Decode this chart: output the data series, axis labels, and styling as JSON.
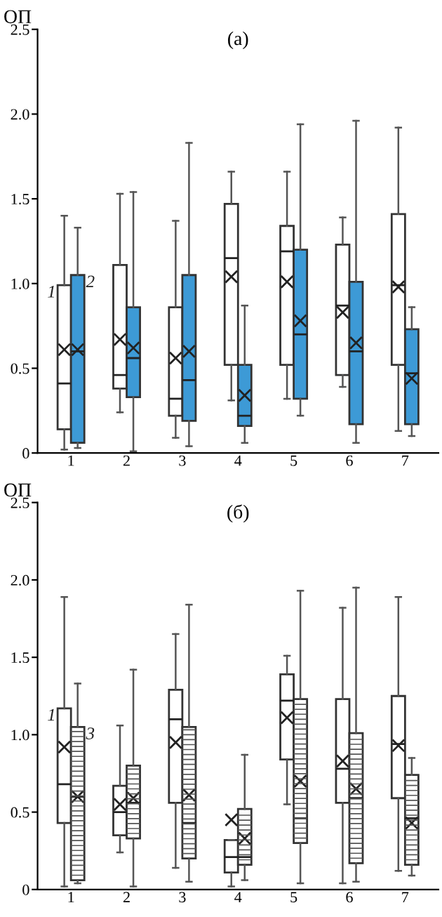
{
  "chart_data": [
    {
      "type": "box",
      "title": "(а)",
      "ylabel": "ОП",
      "categories": [
        "1",
        "2",
        "3",
        "4",
        "5",
        "6",
        "7"
      ],
      "ylim": [
        0,
        2.5
      ],
      "yticks": [
        0,
        {
          "value": 0.5,
          "label": "0.5"
        },
        {
          "value": 1,
          "label": "1.0"
        },
        {
          "value": 1.5,
          "label": "1.5"
        },
        {
          "value": 2,
          "label": "2.0"
        },
        {
          "value": 2.5,
          "label": "2.5"
        }
      ],
      "grid": false,
      "legend": false,
      "marker": "cross",
      "series": [
        {
          "name": "1",
          "color": "#ffffff",
          "boxes": [
            {
              "low": 0.02,
              "q1": 0.14,
              "median": 0.41,
              "q3": 0.99,
              "high": 1.4,
              "mean": 0.61
            },
            {
              "low": 0.24,
              "q1": 0.38,
              "median": 0.46,
              "q3": 1.11,
              "high": 1.53,
              "mean": 0.67
            },
            {
              "low": 0.09,
              "q1": 0.22,
              "median": 0.32,
              "q3": 0.86,
              "high": 1.37,
              "mean": 0.56
            },
            {
              "low": 0.31,
              "q1": 0.52,
              "median": 1.15,
              "q3": 1.47,
              "high": 1.66,
              "mean": 1.04
            },
            {
              "low": 0.32,
              "q1": 0.52,
              "median": 1.19,
              "q3": 1.34,
              "high": 1.66,
              "mean": 1.01
            },
            {
              "low": 0.39,
              "q1": 0.46,
              "median": 0.87,
              "q3": 1.23,
              "high": 1.39,
              "mean": 0.83
            },
            {
              "low": 0.13,
              "q1": 0.52,
              "median": 0.99,
              "q3": 1.41,
              "high": 1.92,
              "mean": 0.98
            }
          ]
        },
        {
          "name": "2",
          "color": "#3d9ad6",
          "boxes": [
            {
              "low": 0.03,
              "q1": 0.06,
              "median": 0.6,
              "q3": 1.05,
              "high": 1.33,
              "mean": 0.61
            },
            {
              "low": 0.01,
              "q1": 0.33,
              "median": 0.56,
              "q3": 0.86,
              "high": 1.54,
              "mean": 0.62
            },
            {
              "low": 0.04,
              "q1": 0.19,
              "median": 0.43,
              "q3": 1.05,
              "high": 1.83,
              "mean": 0.6
            },
            {
              "low": 0.06,
              "q1": 0.16,
              "median": 0.22,
              "q3": 0.52,
              "high": 0.87,
              "mean": 0.34
            },
            {
              "low": 0.22,
              "q1": 0.32,
              "median": 0.7,
              "q3": 1.2,
              "high": 1.94,
              "mean": 0.78
            },
            {
              "low": 0.06,
              "q1": 0.17,
              "median": 0.6,
              "q3": 1.01,
              "high": 1.96,
              "mean": 0.65
            },
            {
              "low": 0.1,
              "q1": 0.17,
              "median": 0.47,
              "q3": 0.73,
              "high": 0.86,
              "mean": 0.44
            }
          ]
        }
      ]
    },
    {
      "type": "box",
      "title": "(б)",
      "ylabel": "ОП",
      "categories": [
        "1",
        "2",
        "3",
        "4",
        "5",
        "6",
        "7"
      ],
      "ylim": [
        0,
        2.5
      ],
      "yticks": [
        0,
        {
          "value": 0.5,
          "label": "0.5"
        },
        {
          "value": 1,
          "label": "1.0"
        },
        {
          "value": 1.5,
          "label": "1.5"
        },
        {
          "value": 2,
          "label": "2.0"
        },
        {
          "value": 2.5,
          "label": "2.5"
        }
      ],
      "grid": false,
      "legend": false,
      "marker": "cross",
      "series": [
        {
          "name": "1",
          "color": "#ffffff",
          "boxes": [
            {
              "low": 0.02,
              "q1": 0.43,
              "median": 0.68,
              "q3": 1.17,
              "high": 1.89,
              "mean": 0.92
            },
            {
              "low": 0.24,
              "q1": 0.35,
              "median": 0.5,
              "q3": 0.67,
              "high": 1.06,
              "mean": 0.55
            },
            {
              "low": 0.14,
              "q1": 0.56,
              "median": 1.1,
              "q3": 1.29,
              "high": 1.65,
              "mean": 0.95
            },
            {
              "low": 0.02,
              "q1": 0.11,
              "median": 0.21,
              "q3": 0.32,
              "high": 0.32,
              "mean": 0.45
            },
            {
              "low": 0.55,
              "q1": 0.84,
              "median": 1.22,
              "q3": 1.39,
              "high": 1.51,
              "mean": 1.11
            },
            {
              "low": 0.04,
              "q1": 0.56,
              "median": 0.78,
              "q3": 1.23,
              "high": 1.82,
              "mean": 0.83
            },
            {
              "low": 0.12,
              "q1": 0.59,
              "median": 0.94,
              "q3": 1.25,
              "high": 1.89,
              "mean": 0.93
            }
          ]
        },
        {
          "name": "3",
          "color": "#ffffff",
          "boxes": [
            {
              "low": 0.04,
              "q1": 0.06,
              "median": 0.6,
              "q3": 1.05,
              "high": 1.33,
              "mean": 0.6
            },
            {
              "low": 0.02,
              "q1": 0.33,
              "median": 0.56,
              "q3": 0.8,
              "high": 1.42,
              "mean": 0.59
            },
            {
              "low": 0.05,
              "q1": 0.2,
              "median": 0.43,
              "q3": 1.05,
              "high": 1.84,
              "mean": 0.61
            },
            {
              "low": 0.06,
              "q1": 0.16,
              "median": 0.21,
              "q3": 0.52,
              "high": 0.87,
              "mean": 0.33
            },
            {
              "low": 0.04,
              "q1": 0.3,
              "median": 0.46,
              "q3": 1.23,
              "high": 1.93,
              "mean": 0.7
            },
            {
              "low": 0.05,
              "q1": 0.17,
              "median": 0.59,
              "q3": 1.01,
              "high": 1.95,
              "mean": 0.65
            },
            {
              "low": 0.09,
              "q1": 0.16,
              "median": 0.46,
              "q3": 0.74,
              "high": 0.85,
              "mean": 0.43
            }
          ]
        }
      ]
    }
  ]
}
